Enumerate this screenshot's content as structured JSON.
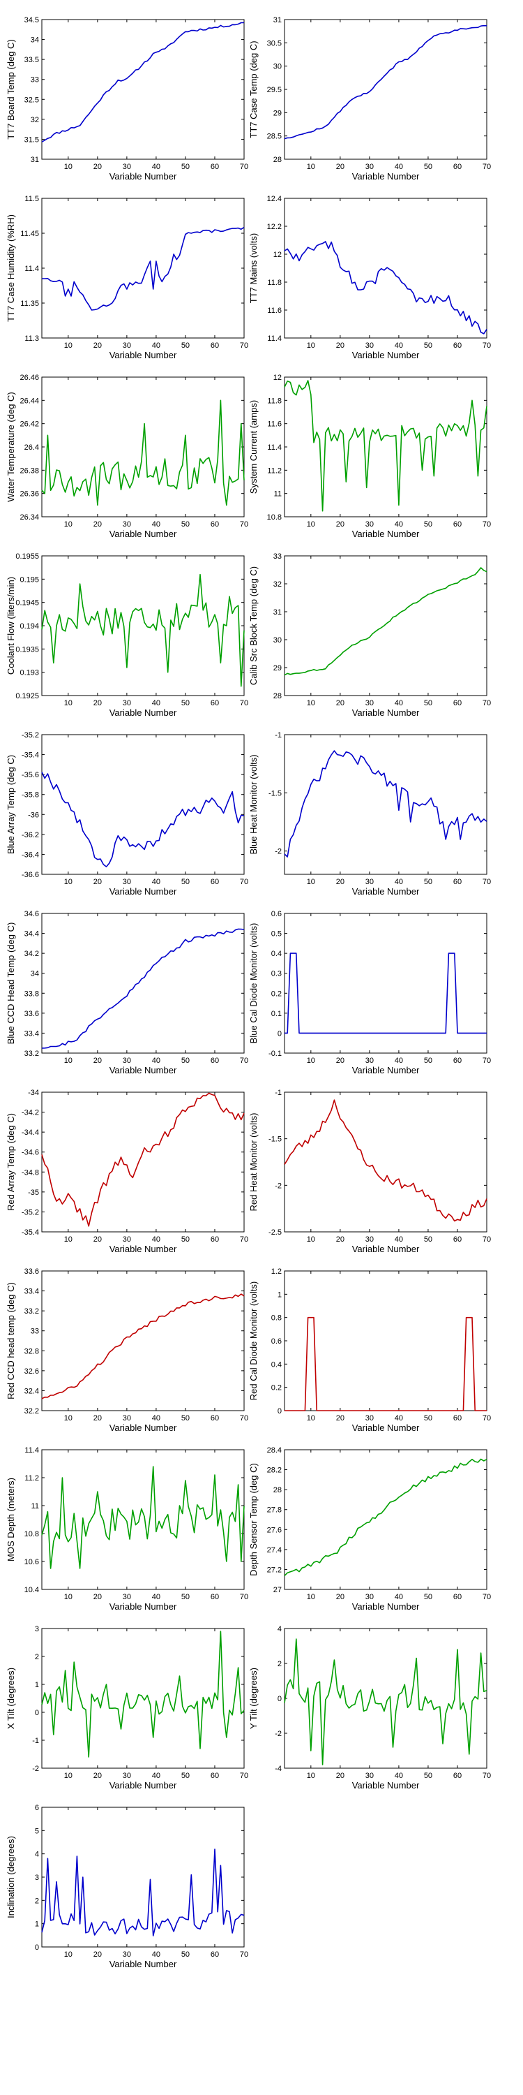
{
  "colors": {
    "blue": "#0000cc",
    "green": "#00a000",
    "red": "#c00000",
    "axis": "#000000",
    "background": "#ffffff"
  },
  "chart_data": [
    {
      "type": "line",
      "ylabel": "TT7 Board Temp (deg C)",
      "xlabel": "Variable Number",
      "xlim": [
        1,
        70
      ],
      "ylim": [
        31,
        34.5
      ],
      "yticks": [
        "31",
        "31.5",
        "32",
        "32.5",
        "33",
        "33.5",
        "34",
        "34.5"
      ],
      "xticks": [
        "10",
        "20",
        "30",
        "40",
        "50",
        "60",
        "70"
      ],
      "color": "#0000cc",
      "shape": "rise_s",
      "grid": false
    },
    {
      "type": "line",
      "ylabel": "TT7 Case Temp (deg C)",
      "xlabel": "Variable Number",
      "xlim": [
        1,
        70
      ],
      "ylim": [
        28,
        31
      ],
      "yticks": [
        "28",
        "28.5",
        "29",
        "29.5",
        "30",
        "30.5",
        "31"
      ],
      "xticks": [
        "10",
        "20",
        "30",
        "40",
        "50",
        "60",
        "70"
      ],
      "color": "#0000cc",
      "shape": "rise_s2",
      "grid": false
    },
    {
      "type": "line",
      "ylabel": "TT7 Case Humidity (%RH)",
      "xlabel": "Variable Number",
      "xlim": [
        1,
        70
      ],
      "ylim": [
        11.3,
        11.5
      ],
      "yticks": [
        "11.3",
        "11.35",
        "11.4",
        "11.45",
        "11.5"
      ],
      "xticks": [
        "10",
        "20",
        "30",
        "40",
        "50",
        "60",
        "70"
      ],
      "color": "#0000cc",
      "shape": "humidity",
      "grid": false
    },
    {
      "type": "line",
      "ylabel": "TT7 Mains  (volts)",
      "xlabel": "Variable Number",
      "xlim": [
        1,
        70
      ],
      "ylim": [
        11.4,
        12.4
      ],
      "yticks": [
        "11.4",
        "11.6",
        "11.8",
        "12",
        "12.2",
        "12.4"
      ],
      "xticks": [
        "10",
        "20",
        "30",
        "40",
        "50",
        "60",
        "70"
      ],
      "color": "#0000cc",
      "shape": "mains",
      "grid": false
    },
    {
      "type": "line",
      "ylabel": "Water Temperature (deg C)",
      "xlabel": "Variable Number",
      "xlim": [
        1,
        70
      ],
      "ylim": [
        26.34,
        26.46
      ],
      "yticks": [
        "26.34",
        "26.36",
        "26.38",
        "26.4",
        "26.42",
        "26.44",
        "26.46"
      ],
      "xticks": [
        "10",
        "20",
        "30",
        "40",
        "50",
        "60",
        "70"
      ],
      "color": "#00a000",
      "shape": "noise_water",
      "grid": false
    },
    {
      "type": "line",
      "ylabel": "System Current (amps)",
      "xlabel": "Variable Number",
      "xlim": [
        1,
        70
      ],
      "ylim": [
        10.8,
        12
      ],
      "yticks": [
        "10.8",
        "11",
        "11.2",
        "11.4",
        "11.6",
        "11.8",
        "12"
      ],
      "xticks": [
        "10",
        "20",
        "30",
        "40",
        "50",
        "60",
        "70"
      ],
      "color": "#00a000",
      "shape": "current",
      "grid": false
    },
    {
      "type": "line",
      "ylabel": "Coolant Flow (liters/min)",
      "xlabel": "Variable Number",
      "xlim": [
        1,
        70
      ],
      "ylim": [
        0.1925,
        0.1955
      ],
      "yticks": [
        "0.1925",
        "0.193",
        "0.1935",
        "0.194",
        "0.1945",
        "0.195",
        "0.1955"
      ],
      "xticks": [
        "10",
        "20",
        "30",
        "40",
        "50",
        "60",
        "70"
      ],
      "color": "#00a000",
      "shape": "coolant",
      "grid": false
    },
    {
      "type": "line",
      "ylabel": "Calib Src Block Temp (deg C)",
      "xlabel": "Variable Number",
      "xlim": [
        1,
        70
      ],
      "ylim": [
        28,
        33
      ],
      "yticks": [
        "28",
        "29",
        "30",
        "31",
        "32",
        "33"
      ],
      "xticks": [
        "10",
        "20",
        "30",
        "40",
        "50",
        "60",
        "70"
      ],
      "color": "#00a000",
      "shape": "rise_calib",
      "grid": false
    },
    {
      "type": "line",
      "ylabel": "Blue Array Temp (deg C)",
      "xlabel": "Variable Number",
      "xlim": [
        1,
        70
      ],
      "ylim": [
        -36.6,
        -35.2
      ],
      "yticks": [
        "-36.6",
        "-36.4",
        "-36.2",
        "-36",
        "-35.8",
        "-35.6",
        "-35.4",
        "-35.2"
      ],
      "xticks": [
        "10",
        "20",
        "30",
        "40",
        "50",
        "60",
        "70"
      ],
      "color": "#0000cc",
      "shape": "array_blue",
      "grid": false
    },
    {
      "type": "line",
      "ylabel": "Blue Heat Monitor (volts)",
      "xlabel": "Variable Number",
      "xlim": [
        1,
        70
      ],
      "ylim": [
        -2.2,
        -1
      ],
      "yticks": [
        "-2",
        "-1.5",
        "-1"
      ],
      "xticks": [
        "10",
        "20",
        "30",
        "40",
        "50",
        "60",
        "70"
      ],
      "color": "#0000cc",
      "shape": "heat_blue",
      "grid": false
    },
    {
      "type": "line",
      "ylabel": "Blue CCD Head Temp (deg C)",
      "xlabel": "Variable Number",
      "xlim": [
        1,
        70
      ],
      "ylim": [
        33.2,
        34.6
      ],
      "yticks": [
        "33.2",
        "33.4",
        "33.6",
        "33.8",
        "34",
        "34.2",
        "34.4",
        "34.6"
      ],
      "xticks": [
        "10",
        "20",
        "30",
        "40",
        "50",
        "60",
        "70"
      ],
      "color": "#0000cc",
      "shape": "rise_ccd",
      "grid": false
    },
    {
      "type": "line",
      "ylabel": "Blue Cal Diode Monitor (volts)",
      "xlabel": "Variable Number",
      "xlim": [
        1,
        70
      ],
      "ylim": [
        -0.1,
        0.6
      ],
      "yticks": [
        "-0.1",
        "0",
        "0.1",
        "0.2",
        "0.3",
        "0.4",
        "0.5",
        "0.6"
      ],
      "xticks": [
        "10",
        "20",
        "30",
        "40",
        "50",
        "60",
        "70"
      ],
      "color": "#0000cc",
      "shape": "diode_blue",
      "grid": false
    },
    {
      "type": "line",
      "ylabel": "Red Array Temp (deg C)",
      "xlabel": "Variable Number",
      "xlim": [
        1,
        70
      ],
      "ylim": [
        -35.4,
        -34
      ],
      "yticks": [
        "-35.4",
        "-35.2",
        "-35",
        "-34.8",
        "-34.6",
        "-34.4",
        "-34.2",
        "-34"
      ],
      "xticks": [
        "10",
        "20",
        "30",
        "40",
        "50",
        "60",
        "70"
      ],
      "color": "#c00000",
      "shape": "array_red",
      "grid": false
    },
    {
      "type": "line",
      "ylabel": "Red Heat Monitor (volts)",
      "xlabel": "Variable Number",
      "xlim": [
        1,
        70
      ],
      "ylim": [
        -2.5,
        -1
      ],
      "yticks": [
        "-2.5",
        "-2",
        "-1.5",
        "-1"
      ],
      "xticks": [
        "10",
        "20",
        "30",
        "40",
        "50",
        "60",
        "70"
      ],
      "color": "#c00000",
      "shape": "heat_red",
      "grid": false
    },
    {
      "type": "line",
      "ylabel": "Red CCD head temp (deg C)",
      "xlabel": "Variable Number",
      "xlim": [
        1,
        70
      ],
      "ylim": [
        32.2,
        33.6
      ],
      "yticks": [
        "32.2",
        "32.4",
        "32.6",
        "32.8",
        "33",
        "33.2",
        "33.4",
        "33.6"
      ],
      "xticks": [
        "10",
        "20",
        "30",
        "40",
        "50",
        "60",
        "70"
      ],
      "color": "#c00000",
      "shape": "rise_ccd_red",
      "grid": false
    },
    {
      "type": "line",
      "ylabel": "Red Cal Diode Monitor (volts)",
      "xlabel": "Variable Number",
      "xlim": [
        1,
        70
      ],
      "ylim": [
        0,
        1.2
      ],
      "yticks": [
        "0",
        "0.2",
        "0.4",
        "0.6",
        "0.8",
        "1",
        "1.2"
      ],
      "xticks": [
        "10",
        "20",
        "30",
        "40",
        "50",
        "60",
        "70"
      ],
      "color": "#c00000",
      "shape": "diode_red",
      "grid": false
    },
    {
      "type": "line",
      "ylabel": "MOS Depth  (meters)",
      "xlabel": "Variable Number",
      "xlim": [
        1,
        70
      ],
      "ylim": [
        10.4,
        11.4
      ],
      "yticks": [
        "10.4",
        "10.6",
        "10.8",
        "11",
        "11.2",
        "11.4"
      ],
      "xticks": [
        "10",
        "20",
        "30",
        "40",
        "50",
        "60",
        "70"
      ],
      "color": "#00a000",
      "shape": "depth",
      "grid": false
    },
    {
      "type": "line",
      "ylabel": "Depth Sensor Temp (deg C)",
      "xlabel": "Variable Number",
      "xlim": [
        1,
        70
      ],
      "ylim": [
        27,
        28.4
      ],
      "yticks": [
        "27",
        "27.2",
        "27.4",
        "27.6",
        "27.8",
        "28",
        "28.2",
        "28.4"
      ],
      "xticks": [
        "10",
        "20",
        "30",
        "40",
        "50",
        "60",
        "70"
      ],
      "color": "#00a000",
      "shape": "rise_depthtemp",
      "grid": false
    },
    {
      "type": "line",
      "ylabel": "X Tilt  (degrees)",
      "xlabel": "Variable Number",
      "xlim": [
        1,
        70
      ],
      "ylim": [
        -2,
        3
      ],
      "yticks": [
        "-2",
        "-1",
        "0",
        "1",
        "2",
        "3"
      ],
      "xticks": [
        "10",
        "20",
        "30",
        "40",
        "50",
        "60",
        "70"
      ],
      "color": "#00a000",
      "shape": "xtilt",
      "grid": false
    },
    {
      "type": "line",
      "ylabel": "Y Tilt  (degrees)",
      "xlabel": "Variable Number",
      "xlim": [
        1,
        70
      ],
      "ylim": [
        -4,
        4
      ],
      "yticks": [
        "-4",
        "-2",
        "0",
        "2",
        "4"
      ],
      "xticks": [
        "10",
        "20",
        "30",
        "40",
        "50",
        "60",
        "70"
      ],
      "color": "#00a000",
      "shape": "ytilt",
      "grid": false
    },
    {
      "type": "line",
      "ylabel": "Inclination  (degrees)",
      "xlabel": "Variable Number",
      "xlim": [
        1,
        70
      ],
      "ylim": [
        0,
        6
      ],
      "yticks": [
        "0",
        "1",
        "2",
        "3",
        "4",
        "5",
        "6"
      ],
      "xticks": [
        "10",
        "20",
        "30",
        "40",
        "50",
        "60",
        "70"
      ],
      "color": "#0000cc",
      "shape": "incl",
      "grid": false
    }
  ]
}
